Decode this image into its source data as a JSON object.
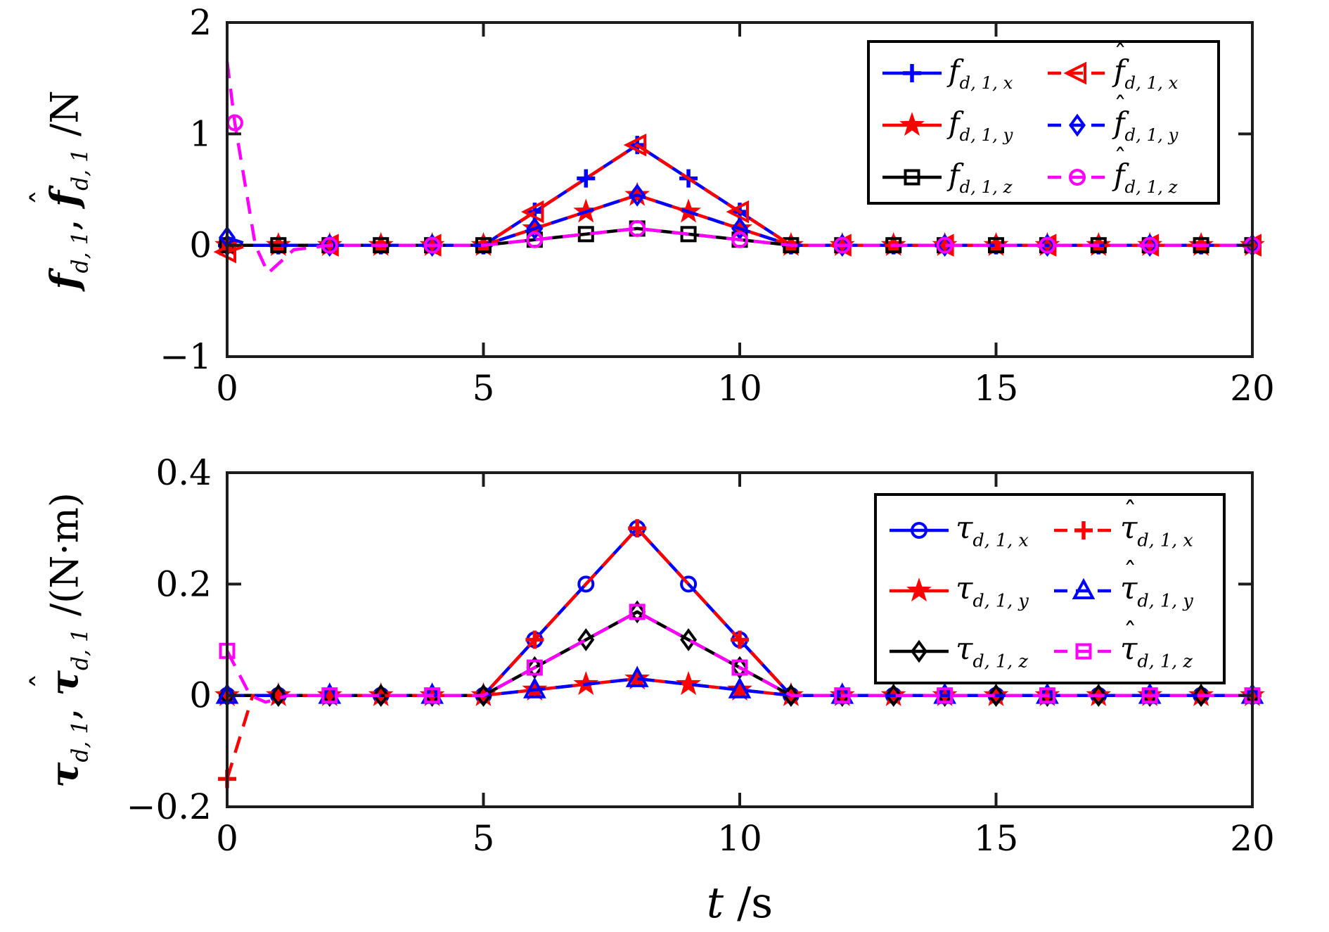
{
  "figure": {
    "background": "#ffffff",
    "axis_color": "#1c1c1c",
    "text_color": "#000000",
    "series_colors": {
      "blue": "#0000ff",
      "red": "#ff0000",
      "black": "#000000",
      "magenta": "#ff00ff"
    }
  },
  "xlabel_parts": [
    {
      "t": "t",
      "i": 1
    },
    {
      "t": " /s"
    }
  ],
  "chart_data": [
    {
      "type": "line",
      "title": "",
      "xlabel": "",
      "ylabel": "f_{d,1}, f_hat_{d,1} /N",
      "ylabel_parts": [
        {
          "t": "f",
          "i": 1,
          "b": 1
        },
        {
          "t": "d, 1",
          "sub": 1
        },
        {
          "t": ", "
        },
        {
          "t": "f",
          "i": 1,
          "b": 1,
          "hat": 1
        },
        {
          "t": "d, 1",
          "sub": 1
        },
        {
          "t": " /N"
        }
      ],
      "xlim": [
        0,
        20
      ],
      "ylim": [
        -1,
        2
      ],
      "xticks": [
        0,
        5,
        10,
        15,
        20
      ],
      "xtick_labels": [
        "0",
        "5",
        "10",
        "15",
        "20"
      ],
      "yticks": [
        -1,
        0,
        1,
        2
      ],
      "ytick_labels": [
        "−1",
        "0",
        "1",
        "2"
      ],
      "grid": false,
      "legend_position": "northeast",
      "legend_rows": [
        [
          0,
          3
        ],
        [
          1,
          4
        ],
        [
          2,
          5
        ]
      ],
      "series": [
        {
          "id": "f-d-1-x",
          "color": "#0000ff",
          "dash": false,
          "marker": "plus",
          "label_parts": [
            {
              "t": "f",
              "i": 1
            },
            {
              "t": "d, 1, x",
              "sub": 1
            }
          ],
          "points": [
            [
              0,
              0
            ],
            [
              5,
              0
            ],
            [
              8,
              0.9
            ],
            [
              11,
              0
            ],
            [
              20,
              0
            ]
          ],
          "marker_t": [
            0,
            1,
            2,
            3,
            4,
            5,
            6,
            7,
            8,
            9,
            10,
            11,
            12,
            13,
            14,
            15,
            16,
            17,
            18,
            19,
            20
          ]
        },
        {
          "id": "f-d-1-y",
          "color": "#ff0000",
          "dash": false,
          "marker": "star",
          "label_parts": [
            {
              "t": "f",
              "i": 1
            },
            {
              "t": "d, 1, y",
              "sub": 1
            }
          ],
          "points": [
            [
              0,
              0
            ],
            [
              5,
              0
            ],
            [
              8,
              0.45
            ],
            [
              11,
              0
            ],
            [
              20,
              0
            ]
          ],
          "marker_t": [
            0,
            1,
            2,
            3,
            4,
            5,
            6,
            7,
            8,
            9,
            10,
            11,
            12,
            13,
            14,
            15,
            16,
            17,
            18,
            19,
            20
          ]
        },
        {
          "id": "f-d-1-z",
          "color": "#000000",
          "dash": false,
          "marker": "square",
          "label_parts": [
            {
              "t": "f",
              "i": 1
            },
            {
              "t": "d, 1, z",
              "sub": 1
            }
          ],
          "points": [
            [
              0,
              0
            ],
            [
              5,
              0
            ],
            [
              8,
              0.15
            ],
            [
              11,
              0
            ],
            [
              20,
              0
            ]
          ],
          "marker_t": [
            0,
            1,
            2,
            3,
            4,
            5,
            6,
            7,
            8,
            9,
            10,
            11,
            12,
            13,
            14,
            15,
            16,
            17,
            18,
            19,
            20
          ]
        },
        {
          "id": "f-hat-d-1-x",
          "color": "#ff0000",
          "dash": true,
          "marker": "tri-left",
          "label_parts": [
            {
              "t": "f",
              "i": 1,
              "hat": 1
            },
            {
              "t": "d, 1, x",
              "sub": 1
            }
          ],
          "points": [
            [
              0,
              -0.06
            ],
            [
              0.4,
              0
            ],
            [
              5,
              0
            ],
            [
              8,
              0.9
            ],
            [
              11,
              0
            ],
            [
              20,
              0
            ]
          ],
          "marker_t": [
            0,
            2,
            4,
            6,
            8,
            10,
            12,
            14,
            16,
            18,
            20
          ]
        },
        {
          "id": "f-hat-d-1-y",
          "color": "#0000ff",
          "dash": true,
          "marker": "diamond",
          "label_parts": [
            {
              "t": "f",
              "i": 1,
              "hat": 1
            },
            {
              "t": "d, 1, y",
              "sub": 1
            }
          ],
          "points": [
            [
              0,
              0.07
            ],
            [
              0.45,
              0
            ],
            [
              5,
              0
            ],
            [
              8,
              0.45
            ],
            [
              11,
              0
            ],
            [
              20,
              0
            ]
          ],
          "marker_t": [
            0,
            2,
            4,
            6,
            8,
            10,
            12,
            14,
            16,
            18,
            20
          ]
        },
        {
          "id": "f-hat-d-1-z",
          "color": "#ff00ff",
          "dash": true,
          "marker": "circle",
          "label_parts": [
            {
              "t": "f",
              "i": 1,
              "hat": 1
            },
            {
              "t": "d, 1, z",
              "sub": 1
            }
          ],
          "points": [
            [
              0,
              1.65
            ],
            [
              0.15,
              1.1
            ],
            [
              0.55,
              0
            ],
            [
              0.8,
              -0.25
            ],
            [
              1.3,
              -0.04
            ],
            [
              2,
              0
            ],
            [
              5,
              0
            ],
            [
              8,
              0.15
            ],
            [
              11,
              0
            ],
            [
              20,
              0
            ]
          ],
          "marker_t": [
            0.15,
            2,
            4,
            6,
            8,
            10,
            12,
            14,
            16,
            18,
            20
          ]
        }
      ]
    },
    {
      "type": "line",
      "title": "",
      "xlabel": "t /s",
      "ylabel": "tau_{d,1}, tau_hat_{d,1} /(N*m)",
      "ylabel_parts": [
        {
          "t": "τ",
          "i": 1,
          "b": 1
        },
        {
          "t": "d, 1",
          "sub": 1
        },
        {
          "t": ", "
        },
        {
          "t": "τ",
          "i": 1,
          "b": 1,
          "hat": 1
        },
        {
          "t": "d, 1",
          "sub": 1
        },
        {
          "t": " /(N·m)"
        }
      ],
      "xlim": [
        0,
        20
      ],
      "ylim": [
        -0.2,
        0.4
      ],
      "xticks": [
        0,
        5,
        10,
        15,
        20
      ],
      "xtick_labels": [
        "0",
        "5",
        "10",
        "15",
        "20"
      ],
      "yticks": [
        -0.2,
        0,
        0.2,
        0.4
      ],
      "ytick_labels": [
        "−0.2",
        "0",
        "0.2",
        "0.4"
      ],
      "grid": false,
      "legend_position": "northeast",
      "legend_rows": [
        [
          0,
          3
        ],
        [
          1,
          4
        ],
        [
          2,
          5
        ]
      ],
      "series": [
        {
          "id": "tau-d-1-x",
          "color": "#0000ff",
          "dash": false,
          "marker": "circle",
          "label_parts": [
            {
              "t": "τ",
              "i": 1
            },
            {
              "t": "d, 1, x",
              "sub": 1
            }
          ],
          "points": [
            [
              0,
              0
            ],
            [
              5,
              0
            ],
            [
              8,
              0.3
            ],
            [
              11,
              0
            ],
            [
              20,
              0
            ]
          ],
          "marker_t": [
            0,
            1,
            2,
            3,
            4,
            5,
            6,
            7,
            8,
            9,
            10,
            11,
            12,
            13,
            14,
            15,
            16,
            17,
            18,
            19,
            20
          ]
        },
        {
          "id": "tau-d-1-y",
          "color": "#ff0000",
          "dash": false,
          "marker": "star",
          "label_parts": [
            {
              "t": "τ",
              "i": 1
            },
            {
              "t": "d, 1, y",
              "sub": 1
            }
          ],
          "points": [
            [
              0,
              0
            ],
            [
              5,
              0
            ],
            [
              8,
              0.03
            ],
            [
              11,
              0
            ],
            [
              20,
              0
            ]
          ],
          "marker_t": [
            0,
            1,
            2,
            3,
            4,
            5,
            6,
            7,
            8,
            9,
            10,
            11,
            12,
            13,
            14,
            15,
            16,
            17,
            18,
            19,
            20
          ]
        },
        {
          "id": "tau-d-1-z",
          "color": "#000000",
          "dash": false,
          "marker": "diamond",
          "label_parts": [
            {
              "t": "τ",
              "i": 1
            },
            {
              "t": "d, 1, z",
              "sub": 1
            }
          ],
          "points": [
            [
              0,
              0
            ],
            [
              5,
              0
            ],
            [
              8,
              0.15
            ],
            [
              11,
              0
            ],
            [
              20,
              0
            ]
          ],
          "marker_t": [
            0,
            1,
            2,
            3,
            4,
            5,
            6,
            7,
            8,
            9,
            10,
            11,
            12,
            13,
            14,
            15,
            16,
            17,
            18,
            19,
            20
          ]
        },
        {
          "id": "tau-hat-d-1-x",
          "color": "#ff0000",
          "dash": true,
          "marker": "plus",
          "label_parts": [
            {
              "t": "τ",
              "i": 1,
              "hat": 1
            },
            {
              "t": "d, 1, x",
              "sub": 1
            }
          ],
          "points": [
            [
              0,
              -0.15
            ],
            [
              0.5,
              0
            ],
            [
              5,
              0
            ],
            [
              8,
              0.3
            ],
            [
              11,
              0
            ],
            [
              20,
              0
            ]
          ],
          "marker_t": [
            0,
            2,
            4,
            6,
            8,
            10,
            12,
            14,
            16,
            18,
            20
          ]
        },
        {
          "id": "tau-hat-d-1-y",
          "color": "#0000ff",
          "dash": true,
          "marker": "tri-up",
          "label_parts": [
            {
              "t": "τ",
              "i": 1,
              "hat": 1
            },
            {
              "t": "d, 1, y",
              "sub": 1
            }
          ],
          "points": [
            [
              0,
              0
            ],
            [
              5,
              0
            ],
            [
              8,
              0.03
            ],
            [
              11,
              0
            ],
            [
              20,
              0
            ]
          ],
          "marker_t": [
            0,
            2,
            4,
            6,
            8,
            10,
            12,
            14,
            16,
            18,
            20
          ]
        },
        {
          "id": "tau-hat-d-1-z",
          "color": "#ff00ff",
          "dash": true,
          "marker": "square",
          "label_parts": [
            {
              "t": "τ",
              "i": 1,
              "hat": 1
            },
            {
              "t": "d, 1, z",
              "sub": 1
            }
          ],
          "points": [
            [
              0,
              0.08
            ],
            [
              0.45,
              0
            ],
            [
              0.75,
              -0.012
            ],
            [
              1.2,
              0
            ],
            [
              5,
              0
            ],
            [
              8,
              0.15
            ],
            [
              11,
              0
            ],
            [
              20,
              0
            ]
          ],
          "marker_t": [
            0,
            2,
            4,
            6,
            8,
            10,
            12,
            14,
            16,
            18,
            20
          ]
        }
      ]
    }
  ]
}
